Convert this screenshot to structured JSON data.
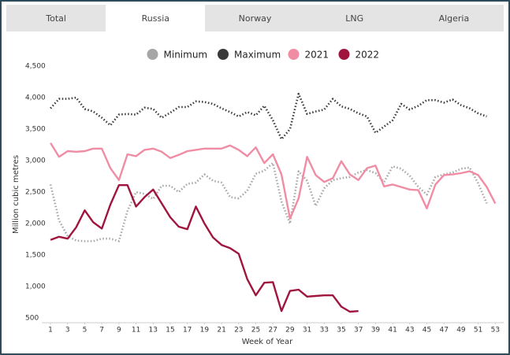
{
  "tabs": [
    "Total",
    "Russia",
    "Norway",
    "LNG",
    "Algeria"
  ],
  "chart_data": {
    "type": "line",
    "x_label": "Week of Year",
    "y_label": "Million cubic metres",
    "x": [
      1,
      2,
      3,
      4,
      5,
      6,
      7,
      8,
      9,
      10,
      11,
      12,
      13,
      14,
      15,
      16,
      17,
      18,
      19,
      20,
      21,
      22,
      23,
      24,
      25,
      26,
      27,
      28,
      29,
      30,
      31,
      32,
      33,
      34,
      35,
      36,
      37,
      38,
      39,
      40,
      41,
      42,
      43,
      44,
      45,
      46,
      47,
      48,
      49,
      50,
      51,
      52,
      53
    ],
    "xlim": [
      0,
      54
    ],
    "xticks": [
      1,
      3,
      5,
      7,
      9,
      11,
      13,
      15,
      17,
      19,
      21,
      23,
      25,
      27,
      29,
      31,
      33,
      35,
      37,
      39,
      41,
      43,
      45,
      47,
      49,
      51,
      53
    ],
    "ylim": [
      400,
      4500
    ],
    "yticks": [
      500,
      {
        "value": 1000,
        "label": "1,000"
      },
      {
        "value": 1500,
        "label": "1,500"
      },
      {
        "value": 2000,
        "label": "2,000"
      },
      {
        "value": 2500,
        "label": "2,500"
      },
      {
        "value": 3000,
        "label": "3,000"
      },
      {
        "value": 3500,
        "label": "3,500"
      },
      {
        "value": 4000,
        "label": "4,000"
      },
      {
        "value": 4500,
        "label": "4,500"
      }
    ],
    "grid": false,
    "legend": "top",
    "series": [
      {
        "name": "Minimum",
        "color": "#a6a6a6",
        "style": "dotted",
        "values": [
          2620,
          2050,
          1800,
          1730,
          1720,
          1720,
          1760,
          1760,
          1720,
          2200,
          2500,
          2470,
          2390,
          2600,
          2600,
          2500,
          2630,
          2650,
          2780,
          2680,
          2650,
          2420,
          2400,
          2520,
          2790,
          2840,
          2960,
          2350,
          2000,
          2830,
          2680,
          2280,
          2560,
          2690,
          2720,
          2740,
          2810,
          2850,
          2800,
          2660,
          2910,
          2870,
          2760,
          2580,
          2460,
          2740,
          2780,
          2810,
          2870,
          2890,
          2640,
          2320,
          null
        ]
      },
      {
        "name": "Maximum",
        "color": "#3a3a3a",
        "style": "dotted",
        "values": [
          3830,
          3980,
          3980,
          4000,
          3820,
          3780,
          3680,
          3560,
          3730,
          3740,
          3730,
          3840,
          3820,
          3680,
          3760,
          3850,
          3850,
          3940,
          3930,
          3900,
          3830,
          3770,
          3700,
          3770,
          3720,
          3870,
          3640,
          3340,
          3500,
          4060,
          3740,
          3780,
          3810,
          3980,
          3860,
          3820,
          3750,
          3700,
          3440,
          3540,
          3640,
          3900,
          3810,
          3870,
          3960,
          3960,
          3920,
          3970,
          3880,
          3830,
          3750,
          3700,
          null
        ]
      },
      {
        "name": "2021",
        "color": "#f08ca4",
        "style": "solid",
        "values": [
          3280,
          3060,
          3150,
          3140,
          3150,
          3190,
          3190,
          2880,
          2690,
          3100,
          3070,
          3170,
          3190,
          3140,
          3040,
          3090,
          3150,
          3170,
          3190,
          3190,
          3190,
          3240,
          3170,
          3070,
          3210,
          2960,
          3100,
          2780,
          2080,
          2400,
          3060,
          2770,
          2660,
          2720,
          2990,
          2780,
          2690,
          2880,
          2920,
          2590,
          2620,
          2580,
          2540,
          2530,
          2240,
          2620,
          2770,
          2780,
          2800,
          2830,
          2770,
          2580,
          2320
        ]
      },
      {
        "name": "2022",
        "color": "#a0153e",
        "style": "solid",
        "values": [
          1740,
          1790,
          1760,
          1940,
          2210,
          2020,
          1920,
          2300,
          2610,
          2610,
          2270,
          2420,
          2540,
          2320,
          2100,
          1950,
          1910,
          2270,
          2000,
          1780,
          1660,
          1610,
          1520,
          1120,
          860,
          1060,
          1070,
          610,
          930,
          950,
          840,
          850,
          860,
          860,
          680,
          600,
          610,
          null,
          null,
          null,
          null,
          null,
          null,
          null,
          null,
          null,
          null,
          null,
          null,
          null,
          null,
          null,
          null
        ]
      }
    ]
  }
}
